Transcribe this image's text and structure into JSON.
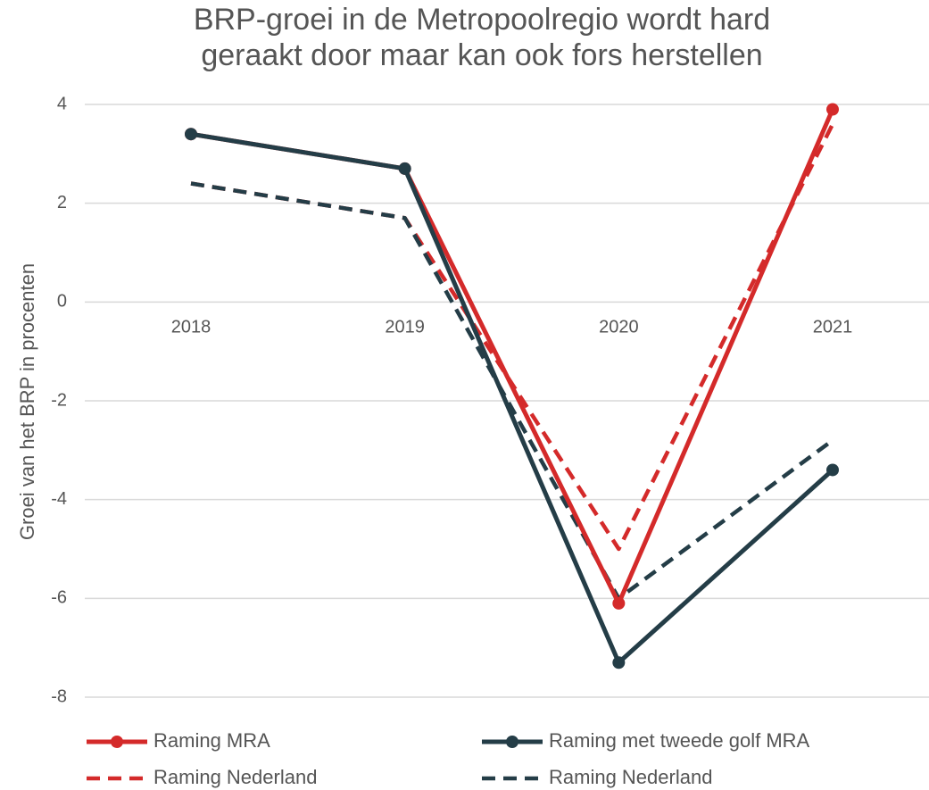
{
  "chart_data": {
    "type": "line",
    "title": "BRP-groei in de Metropoolregio wordt hard geraakt door maar kan ook fors herstellen",
    "y_label": "Groei van het BRP in procenten",
    "categories": [
      "2018",
      "2019",
      "2020",
      "2021"
    ],
    "series": [
      {
        "name": "Raming MRA",
        "color": "#d42a2a",
        "dashed": false,
        "markers": true,
        "values": [
          3.4,
          2.7,
          -6.1,
          3.9
        ]
      },
      {
        "name": "Raming met tweede golf MRA",
        "color": "#243d47",
        "dashed": false,
        "markers": true,
        "values": [
          3.4,
          2.7,
          -7.3,
          -3.4
        ]
      },
      {
        "name": "Raming Nederland",
        "color": "#d42a2a",
        "dashed": true,
        "markers": false,
        "values": [
          2.4,
          1.7,
          -5.0,
          3.6
        ]
      },
      {
        "name": "Raming Nederland",
        "color": "#243d47",
        "dashed": true,
        "markers": false,
        "values": [
          2.4,
          1.7,
          -6.0,
          -2.8
        ]
      }
    ],
    "ylim": [
      -8,
      4
    ],
    "yticks": [
      -8,
      -6,
      -4,
      -2,
      0,
      2,
      4
    ],
    "grid": true,
    "legend": "bottom"
  }
}
